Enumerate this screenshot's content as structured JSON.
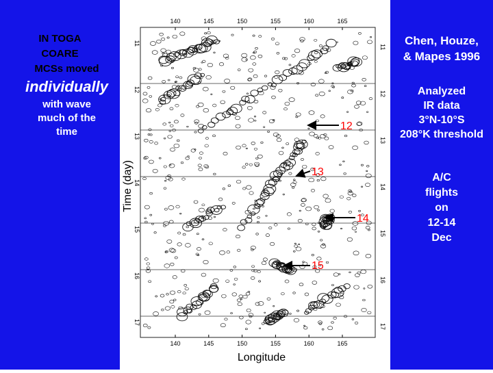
{
  "left_panel": {
    "line1": "IN TOGA",
    "line2": "COARE",
    "line3": "MCSs moved",
    "emphasis": "individually",
    "line4": "with wave",
    "line5": "much of the",
    "line6": "time"
  },
  "right_panel": {
    "citation_line1": "Chen, Houze,",
    "citation_line2": "& Mapes 1996",
    "analysis_line1": "Analyzed",
    "analysis_line2": "IR data",
    "analysis_line3": "3°N-10°S",
    "analysis_line4": "208°K threshold",
    "flights_line1": "A/C",
    "flights_line2": "flights",
    "flights_line3": "on",
    "flights_line4": "12-14",
    "flights_line5": "Dec"
  },
  "figure": {
    "ylabel": "Time (day)",
    "xlabel": "Longitude",
    "x_ticks": [
      "140",
      "145",
      "150",
      "155",
      "160",
      "165"
    ],
    "y_ticks": [
      "11",
      "12",
      "13",
      "14",
      "15",
      "16",
      "17"
    ],
    "flight_labels": [
      "12",
      "13",
      "14",
      "15"
    ]
  },
  "colors": {
    "panel_blue": "#1414e8",
    "label_red": "#ff0000",
    "text_white": "#ffffff"
  }
}
